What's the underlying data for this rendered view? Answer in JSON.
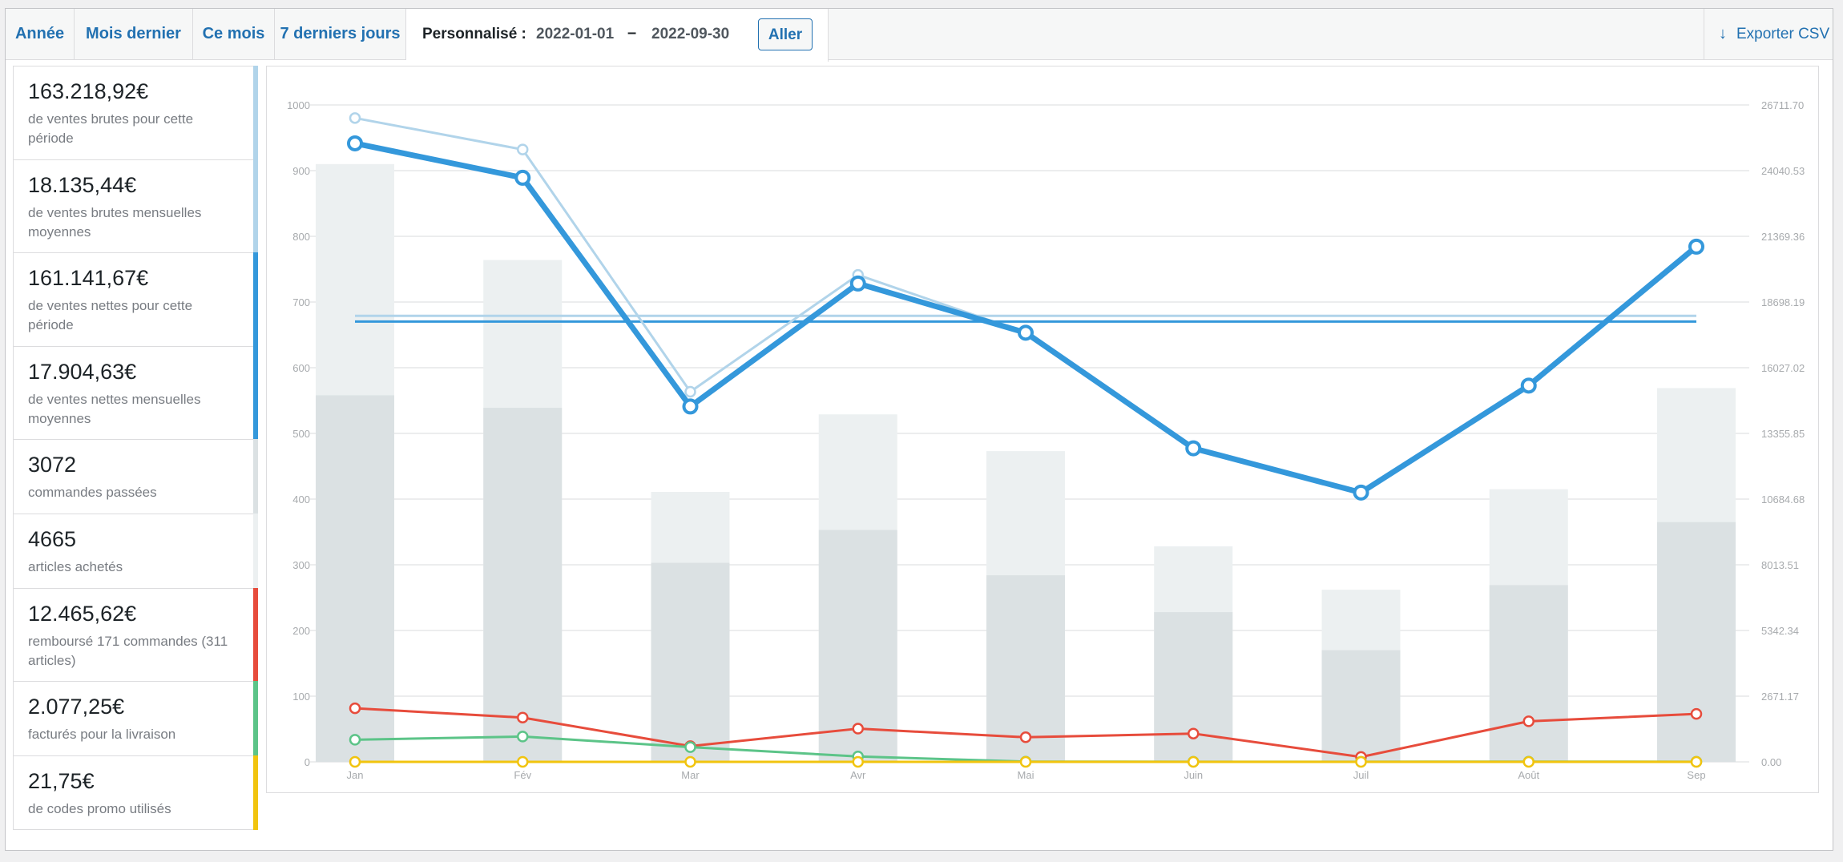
{
  "tabs": [
    {
      "label": "Année"
    },
    {
      "label": "Mois dernier"
    },
    {
      "label": "Ce mois"
    },
    {
      "label": "7 derniers jours"
    }
  ],
  "custom_range": {
    "label": "Personnalisé :",
    "start": "2022-01-01",
    "separator": "–",
    "end": "2022-09-30",
    "go_label": "Aller"
  },
  "export": {
    "label": "Exporter CSV",
    "icon": "download-arrow-icon"
  },
  "legend": [
    {
      "value": "163.218,92€",
      "label": "de ventes brutes pour cette période",
      "color": "#b1d4ea"
    },
    {
      "value": "18.135,44€",
      "label": "de ventes brutes mensuelles moyennes",
      "color": "#b1d4ea"
    },
    {
      "value": "161.141,67€",
      "label": "de ventes nettes pour cette période",
      "color": "#3498db"
    },
    {
      "value": "17.904,63€",
      "label": "de ventes nettes mensuelles moyennes",
      "color": "#3498db"
    },
    {
      "value": "3072",
      "label": "commandes passées",
      "color": "#dbe1e3"
    },
    {
      "value": "4665",
      "label": "articles achetés",
      "color": "#ecf0f1"
    },
    {
      "value": "12.465,62€",
      "label": "remboursé 171 commandes (311 articles)",
      "color": "#e74c3c"
    },
    {
      "value": "2.077,25€",
      "label": "facturés pour la livraison",
      "color": "#5cc488"
    },
    {
      "value": "21,75€",
      "label": "de codes promo utilisés",
      "color": "#f1c40f"
    }
  ],
  "chart_data": {
    "type": "bar",
    "categories": [
      "Jan",
      "Fév",
      "Mar",
      "Avr",
      "Mai",
      "Juin",
      "Juil",
      "Août",
      "Sep"
    ],
    "ylim_left": [
      0,
      1000
    ],
    "ylim_right": [
      0,
      26711.7
    ],
    "yticks_left": [
      "0",
      "100",
      "200",
      "300",
      "400",
      "500",
      "600",
      "700",
      "800",
      "900",
      "1000"
    ],
    "yticks_right": [
      "0.00",
      "2671.17",
      "5342.34",
      "8013.51",
      "10684.68",
      "13355.85",
      "16027.02",
      "18698.19",
      "21369.36",
      "24040.53",
      "26711.70"
    ],
    "grid": true,
    "series": [
      {
        "kind": "bar",
        "axis": "left",
        "color": "#ecf0f1",
        "values": [
          910,
          764,
          411,
          529,
          473,
          328,
          262,
          415,
          569
        ]
      },
      {
        "kind": "bar",
        "axis": "left",
        "color": "#dbe1e3",
        "values": [
          558,
          539,
          303,
          353,
          284,
          228,
          170,
          269,
          365
        ]
      },
      {
        "kind": "line",
        "axis": "right",
        "color": "#b1d4ea",
        "width": 3,
        "marker": 6,
        "values": [
          26180,
          24900,
          15050,
          19800,
          17450,
          12750,
          10950,
          15350,
          20950
        ]
      },
      {
        "kind": "line",
        "axis": "right",
        "color": "#3498db",
        "width": 7,
        "marker": 8,
        "values": [
          25150,
          23750,
          14450,
          19450,
          17450,
          12750,
          10950,
          15300,
          20950
        ]
      },
      {
        "kind": "line",
        "axis": "right",
        "color": "#e74c3c",
        "width": 3,
        "marker": 6,
        "values": [
          2180,
          1800,
          640,
          1350,
          1000,
          1150,
          200,
          1650,
          1950
        ]
      },
      {
        "kind": "line",
        "axis": "right",
        "color": "#5cc488",
        "width": 3,
        "marker": 6,
        "values": [
          900,
          1030,
          600,
          220,
          10,
          5,
          5,
          10,
          5
        ]
      },
      {
        "kind": "line",
        "axis": "right",
        "color": "#f1c40f",
        "width": 3,
        "marker": 6,
        "values": [
          0,
          0,
          0,
          0,
          0,
          0,
          0,
          0,
          0
        ]
      },
      {
        "kind": "avg",
        "axis": "right",
        "color": "#b1d4ea",
        "value": 18135.44
      },
      {
        "kind": "avg",
        "axis": "right",
        "color": "#3498db",
        "value": 17904.63
      }
    ]
  }
}
